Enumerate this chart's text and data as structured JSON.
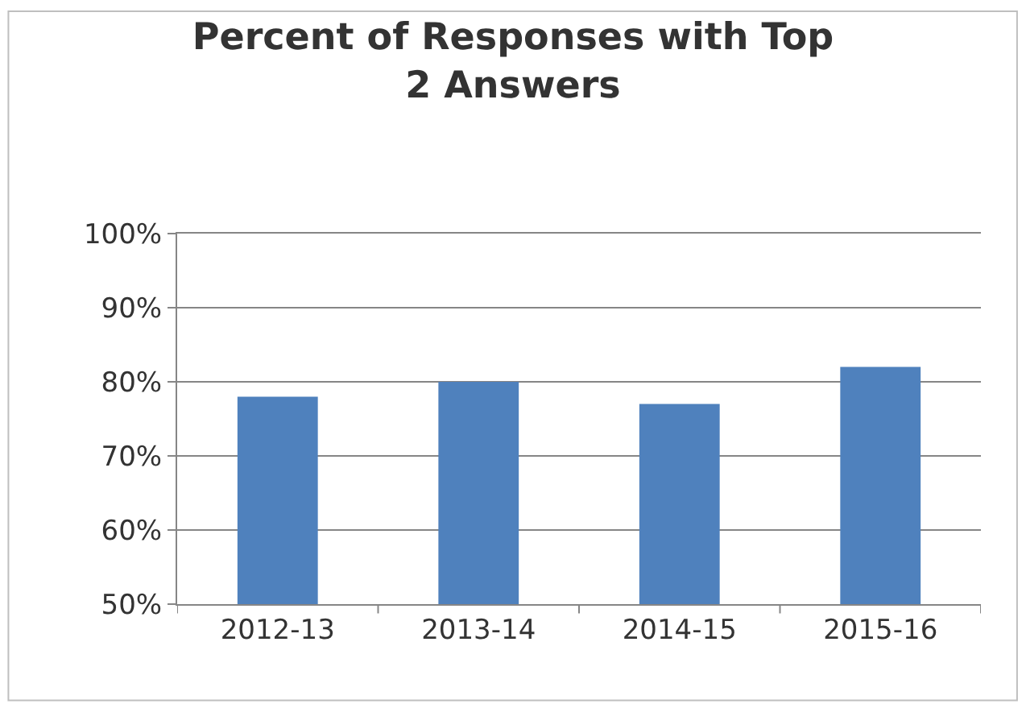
{
  "chart_data": {
    "type": "bar",
    "title": "Percent of Responses with Top 2 Answers",
    "categories": [
      "2012-13",
      "2013-14",
      "2014-15",
      "2015-16"
    ],
    "values": [
      78,
      80,
      77,
      82
    ],
    "color": "#4f81bd",
    "ylim": [
      50,
      100
    ],
    "yticks": [
      {
        "value": 50,
        "label": "50%"
      },
      {
        "value": 60,
        "label": "60%"
      },
      {
        "value": 70,
        "label": "70%"
      },
      {
        "value": 80,
        "label": "80%"
      },
      {
        "value": 90,
        "label": "90%"
      },
      {
        "value": 100,
        "label": "100%"
      }
    ],
    "grid": "y"
  }
}
